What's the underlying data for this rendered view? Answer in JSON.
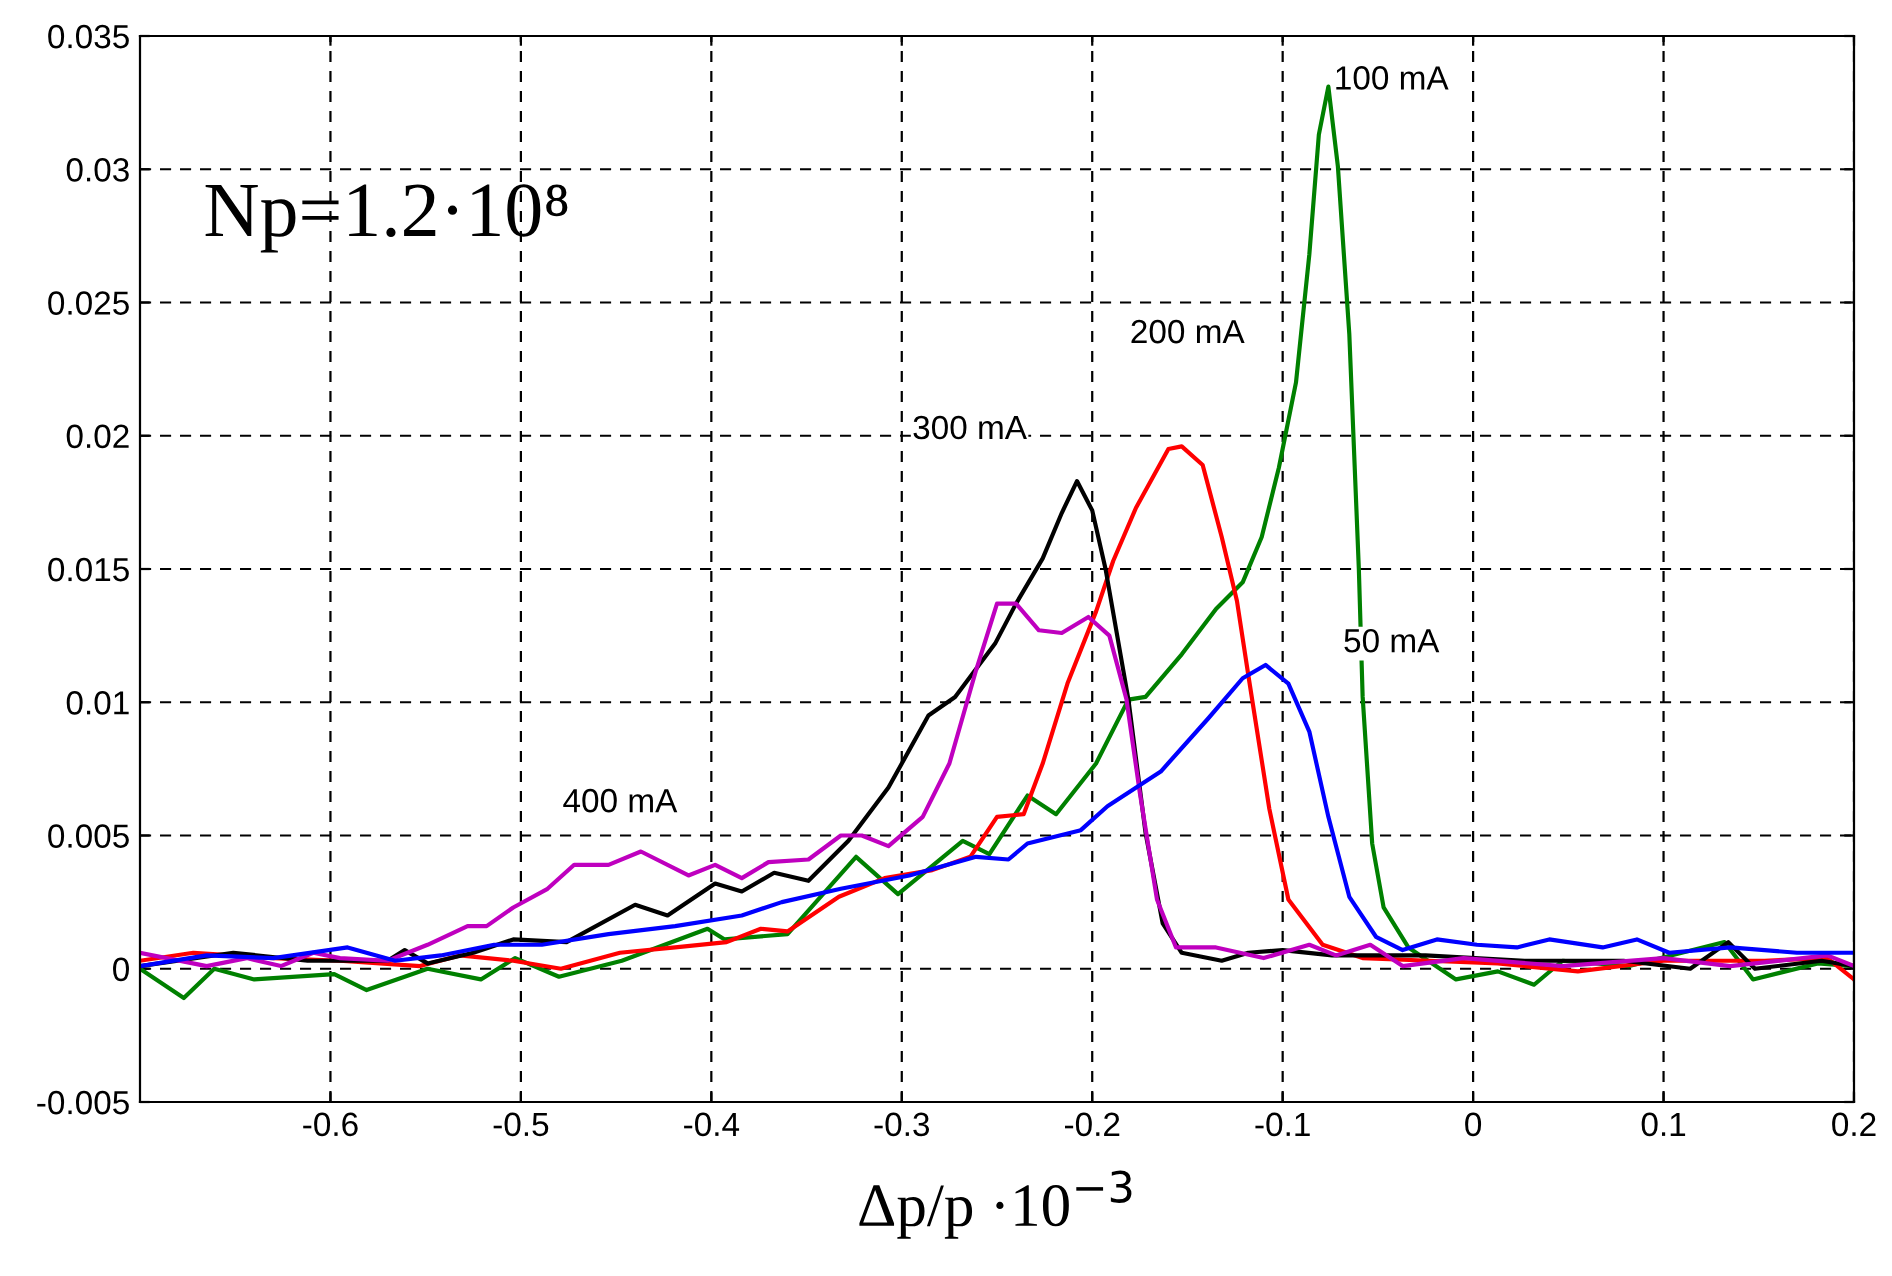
{
  "chart_data": {
    "type": "line",
    "xlabel": "Δp/p ·10$^{−3}$",
    "xlim": [
      -0.7,
      0.2
    ],
    "xticks": [
      -0.6,
      -0.5,
      -0.4,
      -0.3,
      -0.2,
      -0.1,
      0,
      0.1,
      0.2
    ],
    "ylim": [
      -0.005,
      0.035
    ],
    "yticks": [
      -0.005,
      0,
      0.005,
      0.01,
      0.015,
      0.02,
      0.025,
      0.03,
      0.035
    ],
    "grid": true,
    "marker": "none",
    "line_style": "solid",
    "annotations": [
      "Np=1.2·10⁸",
      "100 mA",
      "200 mA",
      "300 mA",
      "50 mA",
      "400 mA"
    ],
    "series": [
      {
        "color": "#008000",
        "x": [
          -0.7,
          -0.677,
          -0.661,
          -0.64,
          -0.598,
          -0.581,
          -0.549,
          -0.521,
          -0.503,
          -0.48,
          -0.447,
          -0.402,
          -0.393,
          -0.36,
          -0.324,
          -0.302,
          -0.268,
          -0.254,
          -0.234,
          -0.219,
          -0.198,
          -0.181,
          -0.172,
          -0.153,
          -0.135,
          -0.121,
          -0.111,
          -0.102,
          -0.093,
          -0.086,
          -0.081,
          -0.076,
          -0.071,
          -0.065,
          -0.06,
          -0.058,
          -0.053,
          -0.047,
          -0.034,
          -0.009,
          0.013,
          0.032,
          0.047,
          0.082,
          0.132,
          0.147,
          0.181,
          0.2
        ],
        "values": [
          0,
          -0.0011,
          0,
          -0.0004,
          -0.0002,
          -0.0008,
          0,
          -0.0004,
          0.0004,
          -0.0003,
          0.0003,
          0.0015,
          0.0011,
          0.0013,
          0.0042,
          0.0028,
          0.0048,
          0.0043,
          0.0065,
          0.0058,
          0.0077,
          0.0101,
          0.0102,
          0.0118,
          0.0135,
          0.0145,
          0.0162,
          0.0188,
          0.022,
          0.0268,
          0.0313,
          0.0331,
          0.0301,
          0.0238,
          0.015,
          0.0102,
          0.0047,
          0.0023,
          0.0008,
          -0.0004,
          -0.0001,
          -0.0006,
          0.0003,
          0.0001,
          0.001,
          -0.0004,
          0.0002,
          0.0001
        ]
      },
      {
        "color": "#ff0000",
        "x": [
          -0.7,
          -0.672,
          -0.63,
          -0.595,
          -0.553,
          -0.532,
          -0.504,
          -0.479,
          -0.448,
          -0.419,
          -0.392,
          -0.374,
          -0.36,
          -0.333,
          -0.309,
          -0.284,
          -0.264,
          -0.25,
          -0.236,
          -0.226,
          -0.213,
          -0.198,
          -0.189,
          -0.177,
          -0.16,
          -0.153,
          -0.142,
          -0.132,
          -0.124,
          -0.118,
          -0.107,
          -0.097,
          -0.079,
          -0.058,
          -0.023,
          0.013,
          0.055,
          0.1,
          0.153,
          0.186,
          0.2
        ],
        "values": [
          0.0003,
          0.0006,
          0.0004,
          0.0003,
          0.0001,
          0.0005,
          0.0003,
          0,
          0.0006,
          0.0008,
          0.001,
          0.0015,
          0.0014,
          0.0027,
          0.0034,
          0.0037,
          0.0042,
          0.0057,
          0.0058,
          0.0077,
          0.0107,
          0.0134,
          0.0153,
          0.0173,
          0.0195,
          0.0196,
          0.0189,
          0.0162,
          0.0138,
          0.011,
          0.006,
          0.0026,
          0.0009,
          0.0004,
          0.0003,
          0.0002,
          -0.0001,
          0.0003,
          0.0003,
          0.0004,
          -0.0004
        ]
      },
      {
        "color": "#000000",
        "x": [
          -0.7,
          -0.651,
          -0.612,
          -0.57,
          -0.561,
          -0.549,
          -0.525,
          -0.504,
          -0.476,
          -0.44,
          -0.423,
          -0.398,
          -0.384,
          -0.367,
          -0.349,
          -0.328,
          -0.307,
          -0.286,
          -0.272,
          -0.251,
          -0.24,
          -0.226,
          -0.216,
          -0.208,
          -0.2,
          -0.193,
          -0.181,
          -0.172,
          -0.163,
          -0.153,
          -0.132,
          -0.118,
          -0.1,
          -0.074,
          -0.025,
          0.027,
          0.079,
          0.114,
          0.134,
          0.148,
          0.183,
          0.2
        ],
        "values": [
          0.0001,
          0.0006,
          0.0003,
          0.0003,
          0.0007,
          0.0002,
          0.0006,
          0.0011,
          0.001,
          0.0024,
          0.002,
          0.0032,
          0.0029,
          0.0036,
          0.0033,
          0.0048,
          0.0068,
          0.0095,
          0.0102,
          0.0122,
          0.0137,
          0.0154,
          0.0171,
          0.0183,
          0.0172,
          0.015,
          0.0101,
          0.0051,
          0.0017,
          0.0006,
          0.0003,
          0.0006,
          0.0007,
          0.0005,
          0.0005,
          0.0003,
          0.0003,
          0,
          0.001,
          0,
          0.0003,
          0.0001
        ]
      },
      {
        "color": "#bf00bf",
        "x": [
          -0.7,
          -0.665,
          -0.644,
          -0.626,
          -0.609,
          -0.595,
          -0.57,
          -0.549,
          -0.528,
          -0.518,
          -0.504,
          -0.486,
          -0.472,
          -0.454,
          -0.437,
          -0.412,
          -0.398,
          -0.384,
          -0.37,
          -0.349,
          -0.332,
          -0.321,
          -0.307,
          -0.289,
          -0.275,
          -0.261,
          -0.25,
          -0.24,
          -0.228,
          -0.216,
          -0.202,
          -0.191,
          -0.182,
          -0.175,
          -0.166,
          -0.156,
          -0.135,
          -0.11,
          -0.086,
          -0.072,
          -0.054,
          -0.037,
          -0.005,
          0.047,
          0.1,
          0.135,
          0.186,
          0.2
        ],
        "values": [
          0.0006,
          0.0001,
          0.0004,
          0.0001,
          0.0006,
          0.0004,
          0.0003,
          0.0009,
          0.0016,
          0.0016,
          0.0023,
          0.003,
          0.0039,
          0.0039,
          0.0044,
          0.0035,
          0.0039,
          0.0034,
          0.004,
          0.0041,
          0.005,
          0.005,
          0.0046,
          0.0057,
          0.0077,
          0.0112,
          0.0137,
          0.0137,
          0.0127,
          0.0126,
          0.0132,
          0.0125,
          0.0101,
          0.0066,
          0.0026,
          0.0008,
          0.0008,
          0.0004,
          0.0009,
          0.0005,
          0.0009,
          0.0001,
          0.0004,
          0.0001,
          0.0004,
          0.0001,
          0.0005,
          0.0001
        ]
      },
      {
        "color": "#0000ff",
        "x": [
          -0.7,
          -0.665,
          -0.63,
          -0.591,
          -0.566,
          -0.542,
          -0.514,
          -0.489,
          -0.454,
          -0.419,
          -0.384,
          -0.363,
          -0.332,
          -0.296,
          -0.261,
          -0.244,
          -0.234,
          -0.206,
          -0.192,
          -0.164,
          -0.139,
          -0.121,
          -0.109,
          -0.097,
          -0.086,
          -0.076,
          -0.065,
          -0.051,
          -0.037,
          -0.019,
          0.002,
          0.023,
          0.04,
          0.068,
          0.086,
          0.103,
          0.135,
          0.17,
          0.2
        ],
        "values": [
          0.0001,
          0.0005,
          0.0004,
          0.0008,
          0.0003,
          0.0005,
          0.0009,
          0.0009,
          0.0013,
          0.0016,
          0.002,
          0.0025,
          0.003,
          0.0035,
          0.0042,
          0.0041,
          0.0047,
          0.0052,
          0.0061,
          0.0074,
          0.0094,
          0.0109,
          0.0114,
          0.0107,
          0.0089,
          0.0057,
          0.0027,
          0.0012,
          0.0007,
          0.0011,
          0.0009,
          0.0008,
          0.0011,
          0.0008,
          0.0011,
          0.0006,
          0.0008,
          0.0006,
          0.0006
        ]
      }
    ]
  }
}
